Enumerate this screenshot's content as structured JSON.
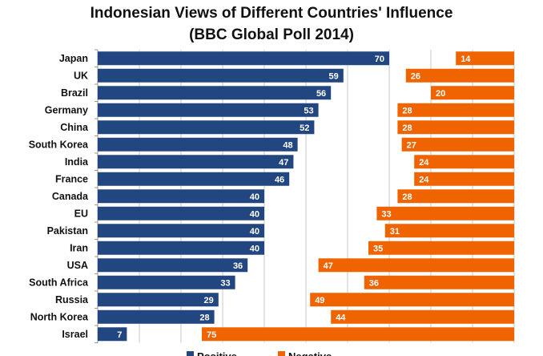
{
  "chart_data": {
    "type": "bar",
    "title": "Indonesian Views of Different Countries' Influence",
    "subtitle": "(BBC Global Poll 2014)",
    "categories": [
      "Japan",
      "UK",
      "Brazil",
      "Germany",
      "China",
      "South Korea",
      "India",
      "France",
      "Canada",
      "EU",
      "Pakistan",
      "Iran",
      "USA",
      "South Africa",
      "Russia",
      "North Korea",
      "Israel"
    ],
    "series": [
      {
        "name": "Positive",
        "color": "#22467f",
        "values": [
          70,
          59,
          56,
          53,
          52,
          48,
          47,
          46,
          40,
          40,
          40,
          40,
          36,
          33,
          29,
          28,
          7
        ]
      },
      {
        "name": "Negative",
        "color": "#f06400",
        "values": [
          14,
          26,
          20,
          28,
          28,
          27,
          24,
          24,
          28,
          33,
          31,
          35,
          47,
          36,
          49,
          44,
          75
        ]
      }
    ],
    "xlim": [
      0,
      100
    ],
    "grid": true,
    "legend": "bottom"
  }
}
